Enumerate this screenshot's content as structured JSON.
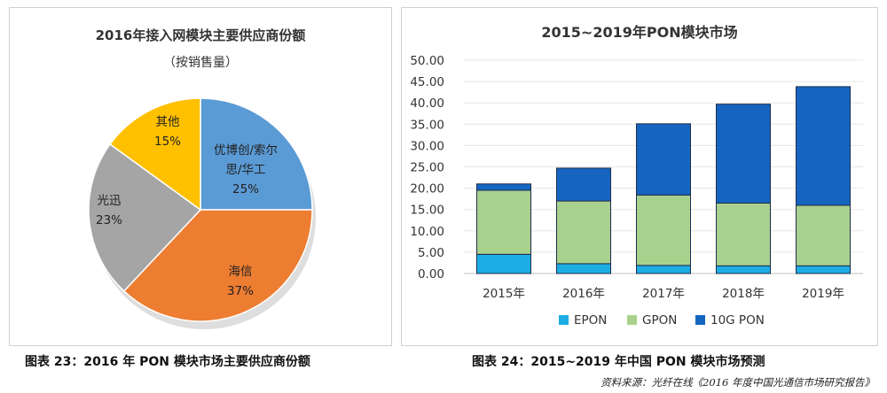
{
  "charts": [
    {
      "type": "pie",
      "title": "2016年接入网模块主要供应商份额",
      "subtitle": "（按销售量）",
      "slices": [
        {
          "label": "优博创/索尔思/华工",
          "value": 25,
          "display": "25%",
          "color": "#5B9BD5"
        },
        {
          "label": "海信",
          "value": 37,
          "display": "37%",
          "color": "#ED7D31"
        },
        {
          "label": "光迅",
          "value": 23,
          "display": "23%",
          "color": "#A5A5A5"
        },
        {
          "label": "其他",
          "value": 15,
          "display": "15%",
          "color": "#FFC000"
        }
      ]
    },
    {
      "type": "bar",
      "stacked": true,
      "title": "2015~2019年PON模块市场",
      "categories": [
        "2015年",
        "2016年",
        "2017年",
        "2018年",
        "2019年"
      ],
      "yticks": [
        "0.00",
        "5.00",
        "10.00",
        "15.00",
        "20.00",
        "25.00",
        "30.00",
        "35.00",
        "40.00",
        "45.00",
        "50.00"
      ],
      "ylim": [
        0,
        50
      ],
      "legend_position": "bottom",
      "series": [
        {
          "name": "EPON",
          "color": "#1CADE4",
          "values": [
            4.5,
            2.3,
            1.9,
            1.8,
            1.8
          ]
        },
        {
          "name": "GPON",
          "color": "#A9D18E",
          "values": [
            15.0,
            14.7,
            16.5,
            14.7,
            14.2
          ]
        },
        {
          "name": "10G PON",
          "color": "#1565C0",
          "values": [
            1.5,
            7.7,
            16.7,
            23.2,
            27.8
          ]
        }
      ]
    }
  ],
  "captions": {
    "left": "图表  23：2016 年 PON 模块市场主要供应商份额",
    "right": "图表  24：2015~2019 年中国 PON 模块市场预测"
  },
  "source": "资料来源：光纤在线《2016 年度中国光通信市场研究报告》"
}
